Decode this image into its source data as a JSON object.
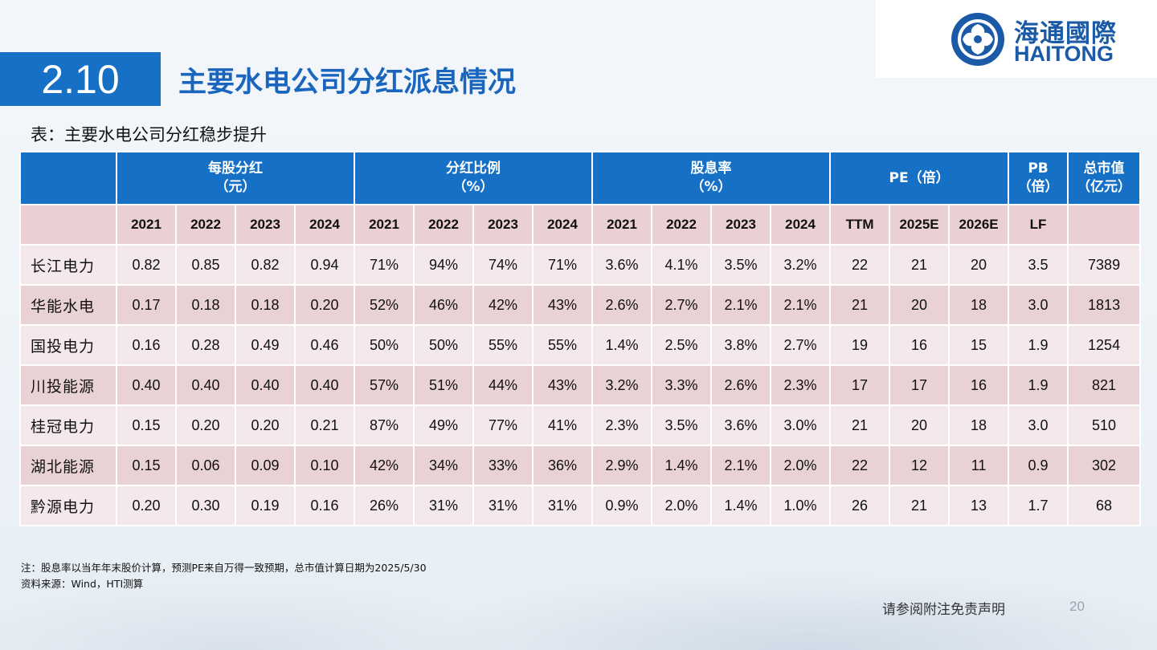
{
  "logo": {
    "cn": "海通國際",
    "en": "HAITONG"
  },
  "section_number": "2.10",
  "title": "主要水电公司分红派息情况",
  "subtitle": "表：主要水电公司分红稳步提升",
  "table": {
    "group_headers": [
      {
        "line1": "每股分红",
        "line2": "（元）",
        "span": 4
      },
      {
        "line1": "分红比例",
        "line2": "（%）",
        "span": 4
      },
      {
        "line1": "股息率",
        "line2": "（%）",
        "span": 4
      },
      {
        "line1": "PE（倍）",
        "line2": "",
        "span": 3
      },
      {
        "line1": "PB",
        "line2": "（倍）",
        "span": 1
      },
      {
        "line1": "总市值",
        "line2": "（亿元）",
        "span": 1
      }
    ],
    "sub_headers": [
      "2021",
      "2022",
      "2023",
      "2024",
      "2021",
      "2022",
      "2023",
      "2024",
      "2021",
      "2022",
      "2023",
      "2024",
      "TTM",
      "2025E",
      "2026E",
      "LF",
      ""
    ],
    "rows": [
      {
        "name": "长江电力",
        "values": [
          "0.82",
          "0.85",
          "0.82",
          "0.94",
          "71%",
          "94%",
          "74%",
          "71%",
          "3.6%",
          "4.1%",
          "3.5%",
          "3.2%",
          "22",
          "21",
          "20",
          "3.5",
          "7389"
        ]
      },
      {
        "name": "华能水电",
        "values": [
          "0.17",
          "0.18",
          "0.18",
          "0.20",
          "52%",
          "46%",
          "42%",
          "43%",
          "2.6%",
          "2.7%",
          "2.1%",
          "2.1%",
          "21",
          "20",
          "18",
          "3.0",
          "1813"
        ]
      },
      {
        "name": "国投电力",
        "values": [
          "0.16",
          "0.28",
          "0.49",
          "0.46",
          "50%",
          "50%",
          "55%",
          "55%",
          "1.4%",
          "2.5%",
          "3.8%",
          "2.7%",
          "19",
          "16",
          "15",
          "1.9",
          "1254"
        ]
      },
      {
        "name": "川投能源",
        "values": [
          "0.40",
          "0.40",
          "0.40",
          "0.40",
          "57%",
          "51%",
          "44%",
          "43%",
          "3.2%",
          "3.3%",
          "2.6%",
          "2.3%",
          "17",
          "17",
          "16",
          "1.9",
          "821"
        ]
      },
      {
        "name": "桂冠电力",
        "values": [
          "0.15",
          "0.20",
          "0.20",
          "0.21",
          "87%",
          "49%",
          "77%",
          "41%",
          "2.3%",
          "3.5%",
          "3.6%",
          "3.0%",
          "21",
          "20",
          "18",
          "3.0",
          "510"
        ]
      },
      {
        "name": "湖北能源",
        "values": [
          "0.15",
          "0.06",
          "0.09",
          "0.10",
          "42%",
          "34%",
          "33%",
          "36%",
          "2.9%",
          "1.4%",
          "2.1%",
          "2.0%",
          "22",
          "12",
          "11",
          "0.9",
          "302"
        ]
      },
      {
        "name": "黔源电力",
        "values": [
          "0.20",
          "0.30",
          "0.19",
          "0.16",
          "26%",
          "31%",
          "31%",
          "31%",
          "0.9%",
          "2.0%",
          "1.4%",
          "1.0%",
          "26",
          "21",
          "13",
          "1.7",
          "68"
        ]
      }
    ]
  },
  "notes": {
    "line1": "注：股息率以当年年末股价计算，预测PE来自万得一致预期，总市值计算日期为2025/5/30",
    "line2": "资料来源：Wind，HTI测算"
  },
  "disclaimer": "请参阅附注免责声明",
  "page_number": "20",
  "colors": {
    "accent": "#1570c6",
    "title": "#1a66bf",
    "row_light": "#f4e8ea",
    "row_dark": "#e9d2d6"
  }
}
